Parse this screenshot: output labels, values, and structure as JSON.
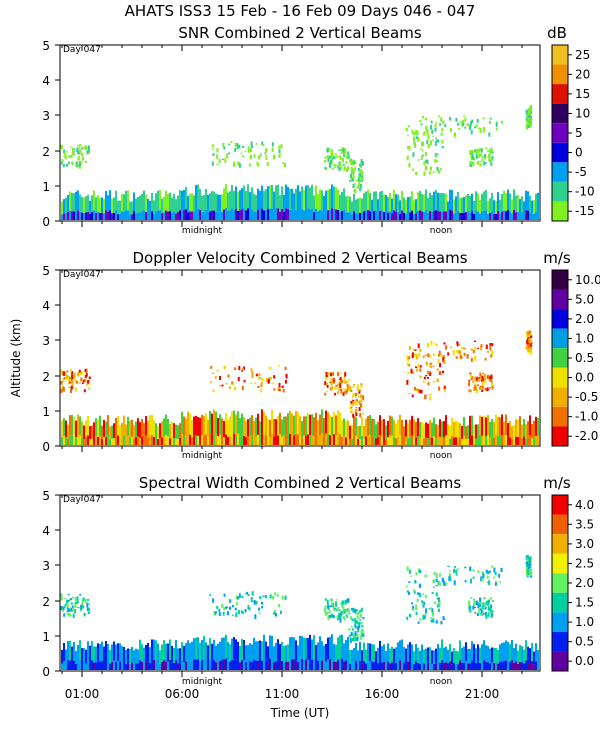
{
  "figure": {
    "title": "AHATS ISS3  15 Feb - 16 Feb 09 Days 046 - 047",
    "y_axis_label": "Altitude (km)",
    "x_axis_label": "Time (UT)",
    "day_marker": "Day 047",
    "midnight_label": "midnight",
    "noon_label": "noon",
    "y_ticks": [
      "0",
      "1",
      "2",
      "3",
      "4",
      "5"
    ],
    "x_ticks": [
      "01:00",
      "06:00",
      "11:00",
      "16:00",
      "21:00"
    ]
  },
  "chart_data": [
    {
      "type": "heatmap",
      "title": "SNR Combined 2 Vertical Beams",
      "ylabel": "Altitude (km)",
      "xlabel": "Time (UT)",
      "ylim": [
        0,
        5
      ],
      "unit": "dB",
      "colorbar": {
        "labels": [
          "25",
          "20",
          "15",
          "10",
          "5",
          "0",
          "-5",
          "-10",
          "-15"
        ],
        "colors": [
          "#f0c020",
          "#f09000",
          "#e01000",
          "#300060",
          "#7000c0",
          "#0000e0",
          "#00a0f0",
          "#30d090",
          "#80f020"
        ]
      }
    },
    {
      "type": "heatmap",
      "title": "Doppler Velocity Combined 2 Vertical Beams",
      "ylabel": "Altitude (km)",
      "xlabel": "Time (UT)",
      "ylim": [
        0,
        5
      ],
      "unit": "m/s",
      "colorbar": {
        "labels": [
          "10.0",
          "5.0",
          "2.0",
          "1.0",
          "0.5",
          "0.0",
          "-0.5",
          "-1.0",
          "-2.0"
        ],
        "colors": [
          "#300040",
          "#6000a0",
          "#0000e0",
          "#00a0e0",
          "#40d040",
          "#f0e000",
          "#f0b000",
          "#f07000",
          "#f00000"
        ]
      }
    },
    {
      "type": "heatmap",
      "title": "Spectral Width Combined 2 Vertical Beams",
      "ylabel": "Altitude (km)",
      "xlabel": "Time (UT)",
      "ylim": [
        0,
        5
      ],
      "unit": "m/s",
      "colorbar": {
        "labels": [
          "4.0",
          "3.5",
          "3.0",
          "2.5",
          "2.0",
          "1.5",
          "1.0",
          "0.5",
          "0.0"
        ],
        "colors": [
          "#f00000",
          "#f06000",
          "#f0b000",
          "#f0f000",
          "#60f060",
          "#00d0a0",
          "#00a0f0",
          "#0020f0",
          "#6000a0"
        ]
      }
    }
  ]
}
